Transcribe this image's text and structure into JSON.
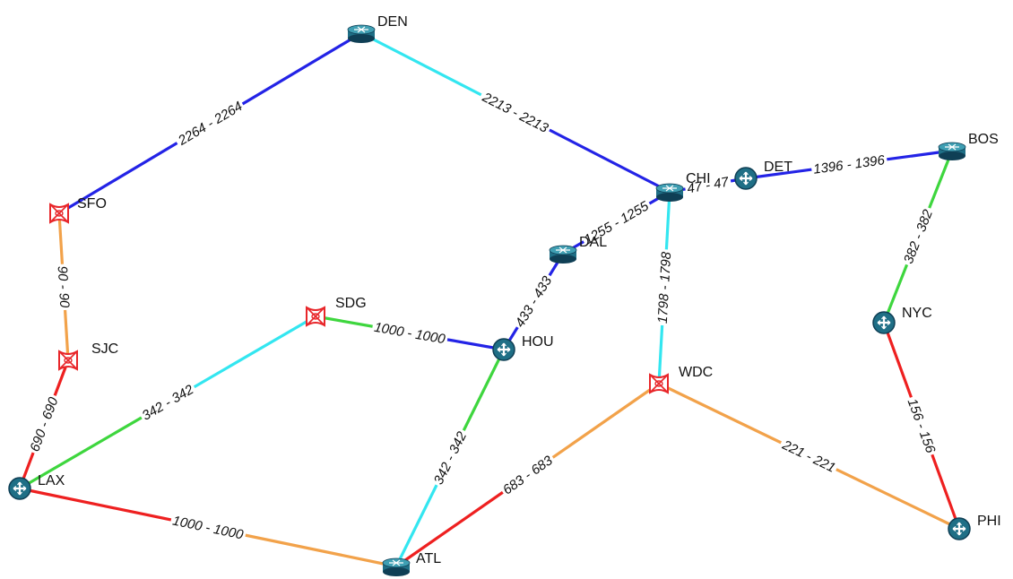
{
  "colors": {
    "blue": "#2323e6",
    "cyan": "#33e6f0",
    "green": "#3ed63e",
    "orange": "#f2a24a",
    "red": "#ee2020",
    "node_body": "#1f6f86",
    "node_dark": "#0f3f55",
    "fw_red": "#e8262a"
  },
  "nodes": [
    {
      "id": "DEN",
      "label": "DEN",
      "kind": "router-icon"
    },
    {
      "id": "SFO",
      "label": "SFO",
      "kind": "firewall-icon"
    },
    {
      "id": "SJC",
      "label": "SJC",
      "kind": "firewall-icon"
    },
    {
      "id": "LAX",
      "label": "LAX",
      "kind": "switch-icon"
    },
    {
      "id": "SDG",
      "label": "SDG",
      "kind": "firewall-icon"
    },
    {
      "id": "HOU",
      "label": "HOU",
      "kind": "switch-icon"
    },
    {
      "id": "ATL",
      "label": "ATL",
      "kind": "router-icon"
    },
    {
      "id": "DAL",
      "label": "DAL",
      "kind": "router-icon"
    },
    {
      "id": "CHI",
      "label": "CHI",
      "kind": "router-icon"
    },
    {
      "id": "DET",
      "label": "DET",
      "kind": "switch-icon"
    },
    {
      "id": "BOS",
      "label": "BOS",
      "kind": "router-icon"
    },
    {
      "id": "NYC",
      "label": "NYC",
      "kind": "switch-icon"
    },
    {
      "id": "WDC",
      "label": "WDC",
      "kind": "firewall-icon"
    },
    {
      "id": "PHI",
      "label": "PHI",
      "kind": "switch-icon"
    }
  ],
  "links": [
    {
      "from": "SFO",
      "to": "DEN",
      "label": "2264 - 2264",
      "c1": "blue",
      "c2": "blue"
    },
    {
      "from": "DEN",
      "to": "CHI",
      "label": "2213 - 2213",
      "c1": "cyan",
      "c2": "blue"
    },
    {
      "from": "SFO",
      "to": "SJC",
      "label": "90 - 90",
      "c1": "orange",
      "c2": "orange"
    },
    {
      "from": "SJC",
      "to": "LAX",
      "label": "690 - 690",
      "c1": "red",
      "c2": "red"
    },
    {
      "from": "LAX",
      "to": "SDG",
      "label": "342 - 342",
      "c1": "green",
      "c2": "cyan"
    },
    {
      "from": "SDG",
      "to": "HOU",
      "label": "1000 - 1000",
      "c1": "green",
      "c2": "blue"
    },
    {
      "from": "LAX",
      "to": "ATL",
      "label": "1000 - 1000",
      "c1": "red",
      "c2": "orange"
    },
    {
      "from": "ATL",
      "to": "HOU",
      "label": "342 - 342",
      "c1": "cyan",
      "c2": "green"
    },
    {
      "from": "HOU",
      "to": "DAL",
      "label": "433 - 433",
      "c1": "blue",
      "c2": "blue"
    },
    {
      "from": "DAL",
      "to": "CHI",
      "label": "1255 - 1255",
      "c1": "blue",
      "c2": "blue"
    },
    {
      "from": "CHI",
      "to": "DET",
      "label": "47 - 47",
      "c1": "blue",
      "c2": "blue"
    },
    {
      "from": "DET",
      "to": "BOS",
      "label": "1396 - 1396",
      "c1": "blue",
      "c2": "blue"
    },
    {
      "from": "CHI",
      "to": "WDC",
      "label": "1798 - 1798",
      "c1": "cyan",
      "c2": "cyan"
    },
    {
      "from": "ATL",
      "to": "WDC",
      "label": "683 - 683",
      "c1": "red",
      "c2": "orange"
    },
    {
      "from": "WDC",
      "to": "PHI",
      "label": "221 - 221",
      "c1": "orange",
      "c2": "orange"
    },
    {
      "from": "BOS",
      "to": "NYC",
      "label": "382 - 382",
      "c1": "green",
      "c2": "green"
    },
    {
      "from": "NYC",
      "to": "PHI",
      "label": "156 - 156",
      "c1": "red",
      "c2": "red"
    }
  ]
}
